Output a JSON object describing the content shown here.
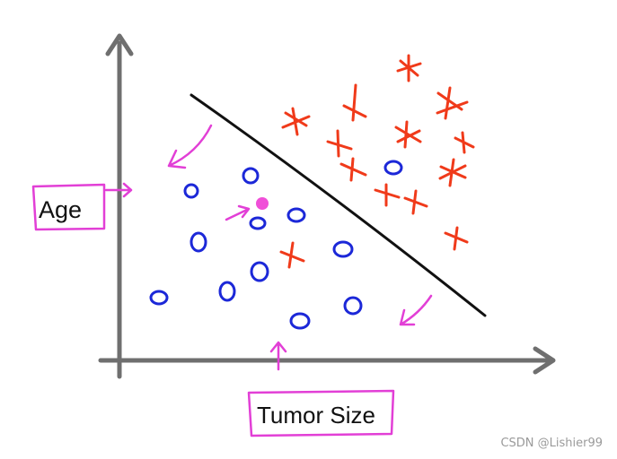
{
  "labels": {
    "y_axis": "Age",
    "x_axis": "Tumor Size"
  },
  "watermark": "CSDN @Lishier99",
  "colors": {
    "axis": "#6f6f6f",
    "boundary": "#111111",
    "class_o": "#1c28d8",
    "class_x": "#f03a1a",
    "annotation": "#e23fd6",
    "query_point": "#f04fd8"
  },
  "symbols": {
    "class_o": "o",
    "class_x": "x",
    "query": "filled-dot"
  }
}
